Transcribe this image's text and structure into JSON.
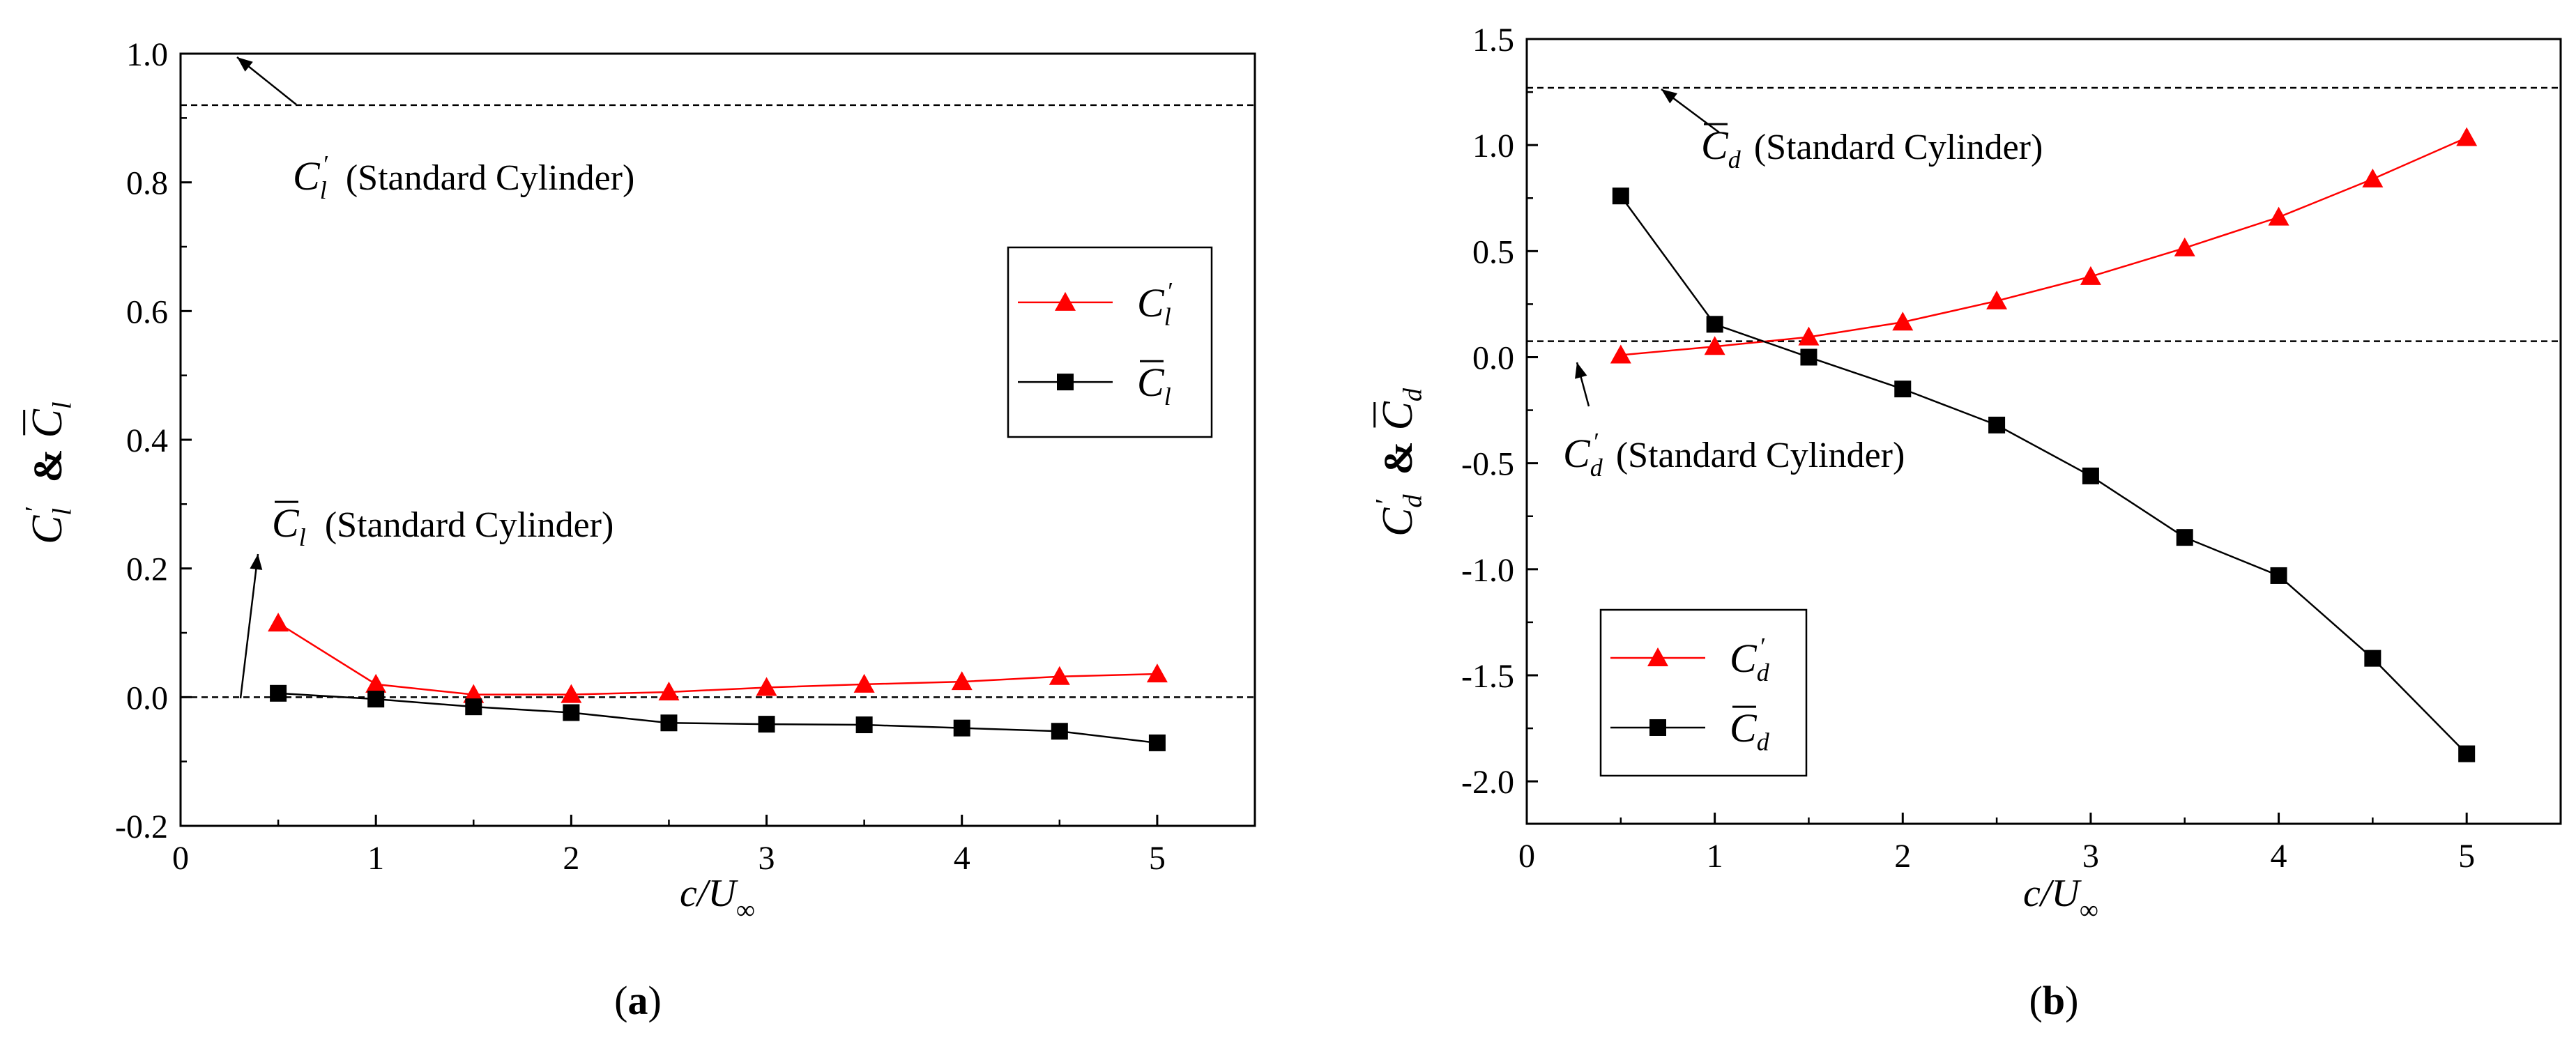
{
  "chart_data": [
    {
      "type": "line",
      "panel_label": "a",
      "xlabel_main": "c",
      "xlabel_div": "/U",
      "xlabel_sub": "∞",
      "ylabel_base": "C",
      "ylabel_sub": "l",
      "ylabel_prime": "′",
      "ylabel_amp": "&",
      "xlim": [
        0,
        5.5
      ],
      "ylim": [
        -0.2,
        1.0
      ],
      "xticks": [
        "0",
        "1",
        "2",
        "3",
        "4",
        "5"
      ],
      "xtick_values": [
        0,
        1,
        2,
        3,
        4,
        5
      ],
      "yticks": [
        "-0.2",
        "0.0",
        "0.2",
        "0.4",
        "0.6",
        "0.8",
        "1.0"
      ],
      "ytick_values": [
        -0.2,
        0.0,
        0.2,
        0.4,
        0.6,
        0.8,
        1.0
      ],
      "x": [
        0.5,
        1.0,
        1.5,
        2.0,
        2.5,
        3.0,
        3.5,
        4.0,
        4.5,
        5.0
      ],
      "series": [
        {
          "name": "C_l′",
          "symbol": "C",
          "sub": "l",
          "mark": "prime",
          "marker": "triangle",
          "color": "#ff0000",
          "values": [
            0.115,
            0.02,
            0.004,
            0.004,
            0.008,
            0.015,
            0.02,
            0.024,
            0.032,
            0.036
          ]
        },
        {
          "name": "C̄_l",
          "symbol": "C",
          "sub": "l",
          "mark": "bar",
          "marker": "square",
          "color": "#000000",
          "values": [
            0.006,
            -0.003,
            -0.015,
            -0.024,
            -0.04,
            -0.042,
            -0.043,
            -0.048,
            -0.053,
            -0.071
          ]
        }
      ],
      "reference_lines": [
        {
          "value": 0.92,
          "symbol": "C",
          "sub": "l",
          "mark": "prime",
          "label": "(Standard Cylinder)"
        },
        {
          "value": 0.0,
          "symbol": "C",
          "sub": "l",
          "mark": "bar",
          "label": "(Standard Cylinder)"
        }
      ],
      "legend_position": "right"
    },
    {
      "type": "line",
      "panel_label": "b",
      "xlabel_main": "c",
      "xlabel_div": "/U",
      "xlabel_sub": "∞",
      "ylabel_base": "C",
      "ylabel_sub": "d",
      "ylabel_prime": "′",
      "ylabel_amp": "&",
      "xlim": [
        0,
        5.5
      ],
      "ylim": [
        -2.2,
        1.5
      ],
      "xticks": [
        "0",
        "1",
        "2",
        "3",
        "4",
        "5"
      ],
      "xtick_values": [
        0,
        1,
        2,
        3,
        4,
        5
      ],
      "yticks": [
        "-2.0",
        "-1.5",
        "-1.0",
        "-0.5",
        "0.0",
        "0.5",
        "1.0",
        "1.5"
      ],
      "ytick_values": [
        -2.0,
        -1.5,
        -1.0,
        -0.5,
        0.0,
        0.5,
        1.0,
        1.5
      ],
      "x": [
        0.5,
        1.0,
        1.5,
        2.0,
        2.5,
        3.0,
        3.5,
        4.0,
        4.5,
        5.0
      ],
      "series": [
        {
          "name": "C_d′",
          "symbol": "C",
          "sub": "d",
          "mark": "prime",
          "marker": "triangle",
          "color": "#ff0000",
          "values": [
            0.01,
            0.05,
            0.095,
            0.165,
            0.265,
            0.38,
            0.515,
            0.66,
            0.84,
            1.035
          ]
        },
        {
          "name": "C̄_d",
          "symbol": "C",
          "sub": "d",
          "mark": "bar",
          "marker": "square",
          "color": "#000000",
          "values": [
            0.76,
            0.155,
            0.0,
            -0.15,
            -0.32,
            -0.56,
            -0.85,
            -1.03,
            -1.42,
            -1.87
          ]
        }
      ],
      "reference_lines": [
        {
          "value": 1.27,
          "symbol": "C",
          "sub": "d",
          "mark": "bar",
          "label": "(Standard Cylinder)"
        },
        {
          "value": 0.075,
          "symbol": "C",
          "sub": "d",
          "mark": "prime",
          "label": "(Standard Cylinder)"
        }
      ],
      "legend_position": "bottom-left"
    }
  ]
}
